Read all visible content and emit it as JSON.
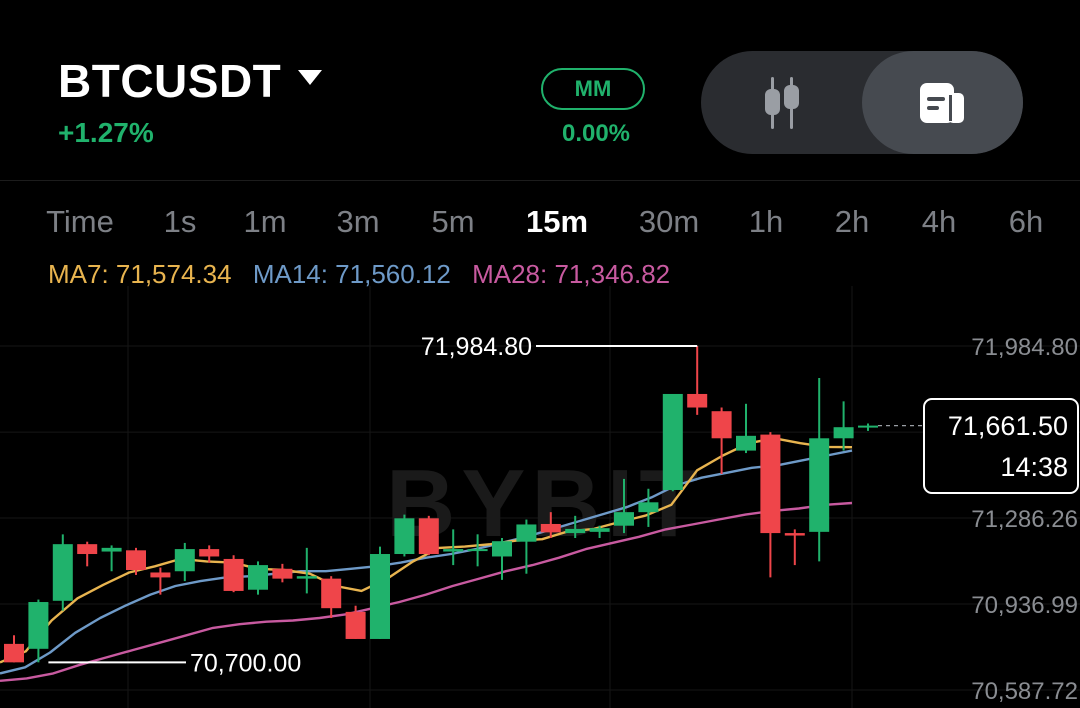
{
  "header": {
    "pair": "BTCUSDT",
    "change": "+1.27%",
    "mm_label": "MM",
    "mm_value": "0.00%",
    "view_toggle": {
      "active": "doc",
      "options": [
        "candlestick-icon",
        "document-icon"
      ]
    }
  },
  "intervals": [
    {
      "label": "Time",
      "active": false
    },
    {
      "label": "1s",
      "active": false
    },
    {
      "label": "1m",
      "active": false
    },
    {
      "label": "3m",
      "active": false
    },
    {
      "label": "5m",
      "active": false
    },
    {
      "label": "15m",
      "active": true
    },
    {
      "label": "30m",
      "active": false
    },
    {
      "label": "1h",
      "active": false
    },
    {
      "label": "2h",
      "active": false
    },
    {
      "label": "4h",
      "active": false
    },
    {
      "label": "6h",
      "active": false
    }
  ],
  "indicators": {
    "ma7": "MA7: 71,574.34",
    "ma14": "MA14: 71,560.12",
    "ma28": "MA28: 71,346.82"
  },
  "chart_data": {
    "type": "candlestick",
    "watermark": "BYBIT",
    "y_ticks": [
      "71,984.80",
      "71,286.26",
      "70,936.99",
      "70,587.72"
    ],
    "y_tick_values": [
      71984.8,
      71286.26,
      70936.99,
      70587.72
    ],
    "high_marker": "71,984.80",
    "low_marker": "70,700.00",
    "current_price": "71,661.50",
    "countdown": "14:38",
    "colors": {
      "up": "#20b26c",
      "down": "#ef454a",
      "ma7": "#e8b44f",
      "ma14": "#6e9ac8",
      "ma28": "#c85aa0"
    },
    "candles": [
      {
        "o": 70775,
        "h": 70810,
        "l": 70700,
        "c": 70700
      },
      {
        "o": 70755,
        "h": 70955,
        "l": 70700,
        "c": 70945
      },
      {
        "o": 70950,
        "h": 71220,
        "l": 70910,
        "c": 71180
      },
      {
        "o": 71180,
        "h": 71190,
        "l": 71090,
        "c": 71140
      },
      {
        "o": 71150,
        "h": 71175,
        "l": 71070,
        "c": 71165
      },
      {
        "o": 71155,
        "h": 71165,
        "l": 71055,
        "c": 71075
      },
      {
        "o": 71065,
        "h": 71085,
        "l": 70975,
        "c": 71045
      },
      {
        "o": 71070,
        "h": 71185,
        "l": 71030,
        "c": 71160
      },
      {
        "o": 71160,
        "h": 71175,
        "l": 71105,
        "c": 71130
      },
      {
        "o": 71120,
        "h": 71135,
        "l": 70985,
        "c": 70990
      },
      {
        "o": 70995,
        "h": 71110,
        "l": 70975,
        "c": 71095
      },
      {
        "o": 71080,
        "h": 71100,
        "l": 71025,
        "c": 71040
      },
      {
        "o": 71040,
        "h": 71165,
        "l": 70980,
        "c": 71050
      },
      {
        "o": 71040,
        "h": 71050,
        "l": 70880,
        "c": 70920
      },
      {
        "o": 70905,
        "h": 70930,
        "l": 70795,
        "c": 70795
      },
      {
        "o": 70795,
        "h": 71170,
        "l": 70795,
        "c": 71140
      },
      {
        "o": 71140,
        "h": 71300,
        "l": 71130,
        "c": 71285
      },
      {
        "o": 71285,
        "h": 71295,
        "l": 71135,
        "c": 71140
      },
      {
        "o": 71150,
        "h": 71240,
        "l": 71095,
        "c": 71160
      },
      {
        "o": 71160,
        "h": 71220,
        "l": 71090,
        "c": 71160
      },
      {
        "o": 71130,
        "h": 71205,
        "l": 71035,
        "c": 71192
      },
      {
        "o": 71190,
        "h": 71280,
        "l": 71060,
        "c": 71260
      },
      {
        "o": 71262,
        "h": 71310,
        "l": 71205,
        "c": 71228
      },
      {
        "o": 71225,
        "h": 71295,
        "l": 71205,
        "c": 71242
      },
      {
        "o": 71230,
        "h": 71255,
        "l": 71205,
        "c": 71245
      },
      {
        "o": 71255,
        "h": 71445,
        "l": 71225,
        "c": 71310
      },
      {
        "o": 71310,
        "h": 71405,
        "l": 71250,
        "c": 71350
      },
      {
        "o": 71400,
        "h": 71790,
        "l": 71395,
        "c": 71790
      },
      {
        "o": 71790,
        "h": 71985,
        "l": 71705,
        "c": 71735
      },
      {
        "o": 71720,
        "h": 71735,
        "l": 71465,
        "c": 71610
      },
      {
        "o": 71560,
        "h": 71750,
        "l": 71550,
        "c": 71620
      },
      {
        "o": 71625,
        "h": 71635,
        "l": 71045,
        "c": 71225
      },
      {
        "o": 71225,
        "h": 71240,
        "l": 71095,
        "c": 71215
      },
      {
        "o": 71230,
        "h": 71855,
        "l": 71110,
        "c": 71610
      },
      {
        "o": 71610,
        "h": 71760,
        "l": 71560,
        "c": 71655
      },
      {
        "o": 71660,
        "h": 71670,
        "l": 71640,
        "c": 71661.5
      }
    ],
    "ma7_path": [
      70700,
      70745,
      70870,
      70960,
      71015,
      71065,
      71090,
      71120,
      71110,
      71105,
      71080,
      71075,
      71060,
      71010,
      70990,
      71040,
      71110,
      71165,
      71170,
      71180,
      71195,
      71200,
      71232,
      71242,
      71270,
      71296,
      71340,
      71480,
      71540,
      71590,
      71610,
      71590,
      71575,
      71574
    ],
    "ma14_path": [
      70655,
      70680,
      70740,
      70820,
      70880,
      70930,
      70975,
      71010,
      71030,
      71045,
      71050,
      71060,
      71070,
      71070,
      71080,
      71090,
      71105,
      71125,
      71140,
      71160,
      71185,
      71210,
      71240,
      71270,
      71300,
      71330,
      71370,
      71420,
      71450,
      71470,
      71490,
      71500,
      71520,
      71540,
      71560
    ],
    "ma28_path": [
      70625,
      70635,
      70655,
      70690,
      70720,
      70750,
      70780,
      70810,
      70840,
      70855,
      70865,
      70870,
      70880,
      70895,
      70920,
      70945,
      70975,
      71010,
      71040,
      71070,
      71095,
      71125,
      71160,
      71185,
      71210,
      71240,
      71260,
      71280,
      71300,
      71315,
      71325,
      71340,
      71347
    ]
  }
}
